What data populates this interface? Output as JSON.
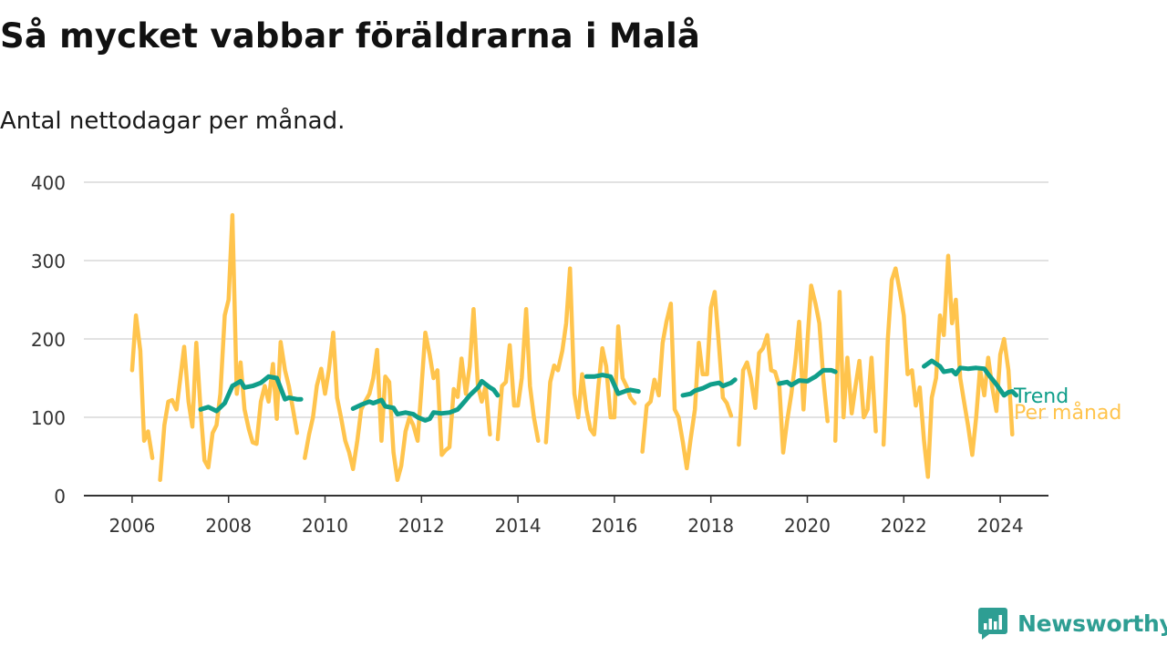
{
  "title": "Så mycket vabbar föräldrarna i Malå",
  "subtitle": "Antal nettodagar per månad.",
  "brand": {
    "name": "Newsworthy",
    "color": "#2e9e93",
    "icon": "newsworthy-logo-icon"
  },
  "colors": {
    "monthly": "#ffc44d",
    "trend": "#109e8a",
    "grid": "#d9d9d9",
    "axis": "#333333"
  },
  "chart_data": {
    "type": "line",
    "title": "Så mycket vabbar föräldrarna i Malå",
    "subtitle": "Antal nettodagar per månad.",
    "xlabel": "",
    "ylabel": "",
    "xlim": [
      2005.0,
      2025.0
    ],
    "ylim": [
      0,
      400
    ],
    "yticks": [
      0,
      100,
      200,
      300,
      400
    ],
    "xticks": [
      2006,
      2008,
      2010,
      2012,
      2014,
      2016,
      2018,
      2020,
      2022,
      2024
    ],
    "grid": true,
    "legend": "right-inline",
    "series": [
      {
        "name": "Per månad",
        "color": "#ffc44d",
        "points": [
          [
            2006.0,
            160
          ],
          [
            2006.08,
            230
          ],
          [
            2006.17,
            185
          ],
          [
            2006.25,
            70
          ],
          [
            2006.33,
            82
          ],
          [
            2006.42,
            48
          ],
          null,
          [
            2006.58,
            20
          ],
          [
            2006.67,
            90
          ],
          [
            2006.75,
            120
          ],
          [
            2006.83,
            122
          ],
          [
            2006.92,
            110
          ],
          [
            2007.0,
            150
          ],
          [
            2007.08,
            190
          ],
          [
            2007.17,
            120
          ],
          [
            2007.25,
            88
          ],
          [
            2007.33,
            195
          ],
          [
            2007.42,
            110
          ],
          [
            2007.5,
            45
          ],
          [
            2007.58,
            36
          ],
          [
            2007.67,
            80
          ],
          [
            2007.75,
            90
          ],
          [
            2007.83,
            130
          ],
          [
            2007.92,
            230
          ],
          [
            2008.0,
            250
          ],
          [
            2008.08,
            358
          ],
          [
            2008.17,
            130
          ],
          [
            2008.25,
            170
          ],
          [
            2008.33,
            110
          ],
          [
            2008.42,
            85
          ],
          [
            2008.5,
            68
          ],
          [
            2008.58,
            66
          ],
          [
            2008.67,
            120
          ],
          [
            2008.75,
            140
          ],
          [
            2008.83,
            120
          ],
          [
            2008.92,
            168
          ],
          [
            2009.0,
            98
          ],
          [
            2009.08,
            196
          ],
          [
            2009.17,
            160
          ],
          [
            2009.25,
            140
          ],
          [
            2009.33,
            112
          ],
          [
            2009.42,
            80
          ],
          null,
          [
            2009.58,
            48
          ],
          [
            2009.67,
            78
          ],
          [
            2009.75,
            100
          ],
          [
            2009.83,
            140
          ],
          [
            2009.92,
            162
          ],
          [
            2010.0,
            130
          ],
          [
            2010.08,
            160
          ],
          [
            2010.17,
            208
          ],
          [
            2010.25,
            125
          ],
          [
            2010.33,
            100
          ],
          [
            2010.42,
            70
          ],
          [
            2010.5,
            55
          ],
          [
            2010.58,
            34
          ],
          [
            2010.67,
            70
          ],
          [
            2010.75,
            110
          ],
          [
            2010.83,
            120
          ],
          [
            2010.92,
            130
          ],
          [
            2011.0,
            150
          ],
          [
            2011.08,
            186
          ],
          [
            2011.17,
            70
          ],
          [
            2011.25,
            152
          ],
          [
            2011.33,
            145
          ],
          [
            2011.42,
            55
          ],
          [
            2011.5,
            20
          ],
          [
            2011.58,
            38
          ],
          [
            2011.67,
            82
          ],
          [
            2011.75,
            100
          ],
          [
            2011.83,
            90
          ],
          [
            2011.92,
            70
          ],
          [
            2012.0,
            138
          ],
          [
            2012.08,
            208
          ],
          [
            2012.17,
            180
          ],
          [
            2012.25,
            150
          ],
          [
            2012.33,
            160
          ],
          [
            2012.42,
            52
          ],
          [
            2012.5,
            58
          ],
          [
            2012.58,
            62
          ],
          [
            2012.67,
            136
          ],
          [
            2012.75,
            126
          ],
          [
            2012.83,
            175
          ],
          [
            2012.92,
            130
          ],
          [
            2013.0,
            165
          ],
          [
            2013.08,
            238
          ],
          [
            2013.17,
            140
          ],
          [
            2013.25,
            120
          ],
          [
            2013.33,
            140
          ],
          [
            2013.42,
            78
          ],
          null,
          [
            2013.58,
            72
          ],
          [
            2013.67,
            140
          ],
          [
            2013.75,
            145
          ],
          [
            2013.83,
            192
          ],
          [
            2013.92,
            115
          ],
          [
            2014.0,
            115
          ],
          [
            2014.08,
            150
          ],
          [
            2014.17,
            238
          ],
          [
            2014.25,
            140
          ],
          [
            2014.33,
            100
          ],
          [
            2014.42,
            70
          ],
          null,
          [
            2014.58,
            68
          ],
          [
            2014.67,
            145
          ],
          [
            2014.75,
            166
          ],
          [
            2014.83,
            160
          ],
          [
            2014.92,
            185
          ],
          [
            2015.0,
            220
          ],
          [
            2015.08,
            290
          ],
          [
            2015.17,
            130
          ],
          [
            2015.25,
            100
          ],
          [
            2015.33,
            155
          ],
          [
            2015.42,
            110
          ],
          [
            2015.5,
            85
          ],
          [
            2015.58,
            78
          ],
          [
            2015.67,
            140
          ],
          [
            2015.75,
            188
          ],
          [
            2015.83,
            165
          ],
          [
            2015.92,
            100
          ],
          [
            2016.0,
            100
          ],
          [
            2016.08,
            216
          ],
          [
            2016.17,
            150
          ],
          [
            2016.25,
            140
          ],
          [
            2016.33,
            125
          ],
          [
            2016.42,
            118
          ],
          null,
          [
            2016.58,
            56
          ],
          [
            2016.67,
            115
          ],
          [
            2016.75,
            120
          ],
          [
            2016.83,
            148
          ],
          [
            2016.92,
            128
          ],
          [
            2017.0,
            195
          ],
          [
            2017.08,
            222
          ],
          [
            2017.17,
            245
          ],
          [
            2017.25,
            110
          ],
          [
            2017.33,
            100
          ],
          [
            2017.42,
            68
          ],
          [
            2017.5,
            35
          ],
          [
            2017.58,
            72
          ],
          [
            2017.67,
            110
          ],
          [
            2017.75,
            195
          ],
          [
            2017.83,
            155
          ],
          [
            2017.92,
            155
          ],
          [
            2018.0,
            240
          ],
          [
            2018.08,
            260
          ],
          [
            2018.17,
            190
          ],
          [
            2018.25,
            125
          ],
          [
            2018.33,
            118
          ],
          [
            2018.42,
            102
          ],
          null,
          [
            2018.58,
            65
          ],
          [
            2018.67,
            160
          ],
          [
            2018.75,
            170
          ],
          [
            2018.83,
            150
          ],
          [
            2018.92,
            112
          ],
          [
            2019.0,
            182
          ],
          [
            2019.08,
            188
          ],
          [
            2019.17,
            205
          ],
          [
            2019.25,
            160
          ],
          [
            2019.33,
            158
          ],
          [
            2019.42,
            140
          ],
          [
            2019.5,
            55
          ],
          [
            2019.58,
            95
          ],
          [
            2019.67,
            130
          ],
          [
            2019.75,
            170
          ],
          [
            2019.83,
            222
          ],
          [
            2019.92,
            110
          ],
          [
            2020.0,
            195
          ],
          [
            2020.08,
            268
          ],
          [
            2020.17,
            245
          ],
          [
            2020.25,
            220
          ],
          [
            2020.33,
            150
          ],
          [
            2020.42,
            95
          ],
          null,
          [
            2020.58,
            70
          ],
          [
            2020.67,
            260
          ],
          [
            2020.75,
            100
          ],
          [
            2020.83,
            176
          ],
          [
            2020.92,
            105
          ],
          [
            2021.0,
            140
          ],
          [
            2021.08,
            172
          ],
          [
            2021.17,
            100
          ],
          [
            2021.25,
            110
          ],
          [
            2021.33,
            176
          ],
          [
            2021.42,
            82
          ],
          null,
          [
            2021.58,
            65
          ],
          [
            2021.67,
            200
          ],
          [
            2021.75,
            275
          ],
          [
            2021.83,
            290
          ],
          [
            2021.92,
            260
          ],
          [
            2022.0,
            230
          ],
          [
            2022.08,
            155
          ],
          [
            2022.17,
            160
          ],
          [
            2022.25,
            115
          ],
          [
            2022.33,
            138
          ],
          [
            2022.42,
            70
          ],
          [
            2022.5,
            24
          ],
          [
            2022.58,
            125
          ],
          [
            2022.67,
            150
          ],
          [
            2022.75,
            230
          ],
          [
            2022.83,
            205
          ],
          [
            2022.92,
            306
          ],
          [
            2023.0,
            220
          ],
          [
            2023.08,
            250
          ],
          [
            2023.17,
            150
          ],
          [
            2023.25,
            120
          ],
          [
            2023.33,
            90
          ],
          [
            2023.42,
            52
          ],
          [
            2023.5,
            100
          ],
          [
            2023.58,
            162
          ],
          [
            2023.67,
            128
          ],
          [
            2023.75,
            176
          ],
          [
            2023.83,
            140
          ],
          [
            2023.92,
            108
          ],
          [
            2024.0,
            180
          ],
          [
            2024.08,
            200
          ],
          [
            2024.17,
            160
          ],
          [
            2024.25,
            78
          ]
        ]
      },
      {
        "name": "Trend",
        "color": "#109e8a",
        "points": [
          [
            2007.42,
            110
          ],
          [
            2007.58,
            113
          ],
          [
            2007.75,
            108
          ],
          [
            2007.92,
            118
          ],
          [
            2008.08,
            140
          ],
          [
            2008.25,
            146
          ],
          [
            2008.33,
            138
          ],
          [
            2008.5,
            140
          ],
          [
            2008.67,
            144
          ],
          [
            2008.83,
            152
          ],
          [
            2009.0,
            150
          ],
          [
            2009.17,
            123
          ],
          [
            2009.25,
            125
          ],
          [
            2009.42,
            123
          ],
          [
            2009.5,
            123
          ],
          null,
          [
            2010.58,
            111
          ],
          [
            2010.75,
            116
          ],
          [
            2010.92,
            120
          ],
          [
            2011.0,
            118
          ],
          [
            2011.17,
            122
          ],
          [
            2011.25,
            114
          ],
          [
            2011.42,
            112
          ],
          [
            2011.5,
            104
          ],
          [
            2011.67,
            106
          ],
          [
            2011.83,
            104
          ],
          [
            2011.92,
            100
          ],
          [
            2012.08,
            96
          ],
          [
            2012.17,
            98
          ],
          [
            2012.25,
            106
          ],
          [
            2012.42,
            105
          ],
          [
            2012.58,
            106
          ],
          [
            2012.75,
            110
          ],
          [
            2012.92,
            122
          ],
          [
            2013.0,
            128
          ],
          [
            2013.17,
            138
          ],
          [
            2013.25,
            146
          ],
          [
            2013.42,
            138
          ],
          [
            2013.5,
            135
          ],
          [
            2013.58,
            128
          ],
          null,
          [
            2015.42,
            152
          ],
          [
            2015.58,
            152
          ],
          [
            2015.75,
            154
          ],
          [
            2015.92,
            152
          ],
          [
            2016.08,
            130
          ],
          [
            2016.25,
            134
          ],
          [
            2016.33,
            135
          ],
          [
            2016.5,
            133
          ],
          null,
          [
            2017.42,
            128
          ],
          [
            2017.58,
            130
          ],
          [
            2017.67,
            134
          ],
          [
            2017.83,
            137
          ],
          [
            2018.0,
            142
          ],
          [
            2018.17,
            144
          ],
          [
            2018.25,
            140
          ],
          [
            2018.42,
            144
          ],
          [
            2018.5,
            148
          ],
          null,
          [
            2019.42,
            143
          ],
          [
            2019.58,
            145
          ],
          [
            2019.67,
            141
          ],
          [
            2019.83,
            147
          ],
          [
            2020.0,
            146
          ],
          [
            2020.17,
            152
          ],
          [
            2020.33,
            160
          ],
          [
            2020.5,
            160
          ],
          [
            2020.58,
            158
          ],
          null,
          [
            2022.42,
            165
          ],
          [
            2022.58,
            172
          ],
          [
            2022.75,
            165
          ],
          [
            2022.83,
            158
          ],
          [
            2023.0,
            160
          ],
          [
            2023.08,
            155
          ],
          [
            2023.17,
            163
          ],
          [
            2023.33,
            162
          ],
          [
            2023.5,
            163
          ],
          [
            2023.67,
            162
          ],
          [
            2023.75,
            155
          ],
          [
            2023.92,
            142
          ],
          [
            2024.08,
            128
          ],
          [
            2024.17,
            132
          ],
          [
            2024.25,
            133
          ],
          [
            2024.33,
            128
          ]
        ]
      }
    ],
    "legend_labels": [
      "Trend",
      "Per månad"
    ]
  }
}
